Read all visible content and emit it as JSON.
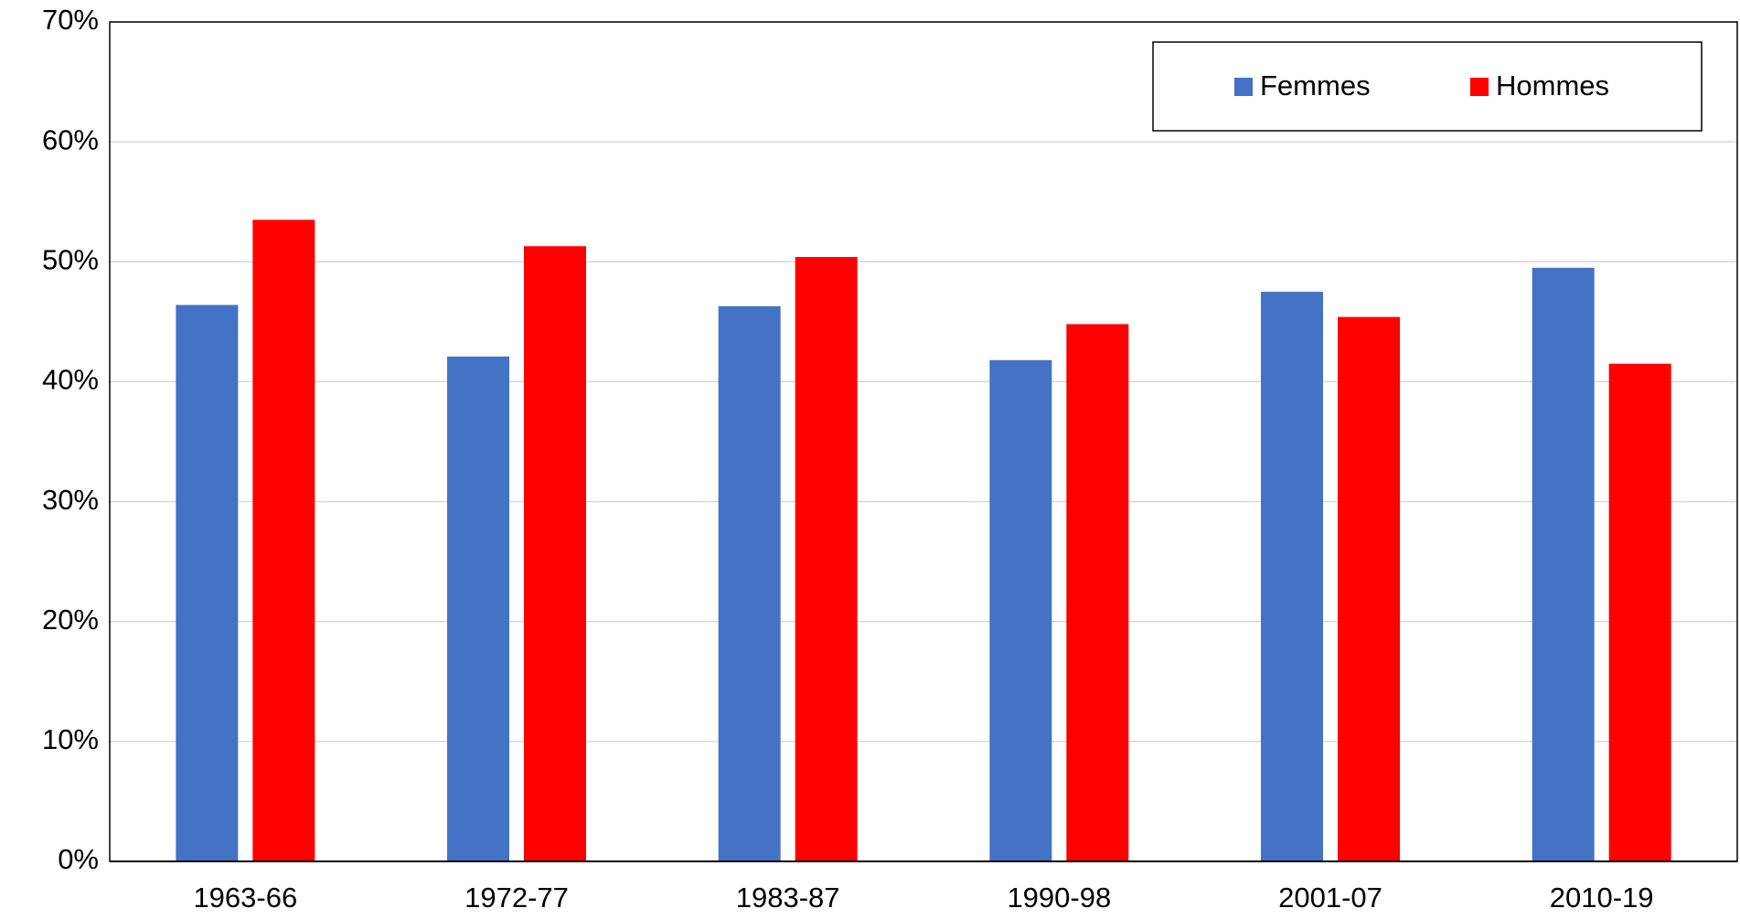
{
  "chart_data": {
    "type": "bar",
    "categories": [
      "1963-66",
      "1972-77",
      "1983-87",
      "1990-98",
      "2001-07",
      "2010-19"
    ],
    "series": [
      {
        "name": "Femmes",
        "color": "#4472c4",
        "values": [
          46.4,
          42.1,
          46.3,
          41.8,
          47.5,
          49.5
        ]
      },
      {
        "name": "Hommes",
        "color": "#ff0000",
        "values": [
          53.5,
          51.3,
          50.4,
          44.8,
          45.4,
          41.5
        ]
      }
    ],
    "ylim": [
      0,
      70
    ],
    "yticks": [
      {
        "value": 0,
        "label": "0%"
      },
      {
        "value": 10,
        "label": "10%"
      },
      {
        "value": 20,
        "label": "20%"
      },
      {
        "value": 30,
        "label": "30%"
      },
      {
        "value": 40,
        "label": "40%"
      },
      {
        "value": 50,
        "label": "50%"
      },
      {
        "value": 60,
        "label": "60%"
      },
      {
        "value": 70,
        "label": "70%"
      }
    ],
    "grid": true,
    "legend": "top-right"
  }
}
